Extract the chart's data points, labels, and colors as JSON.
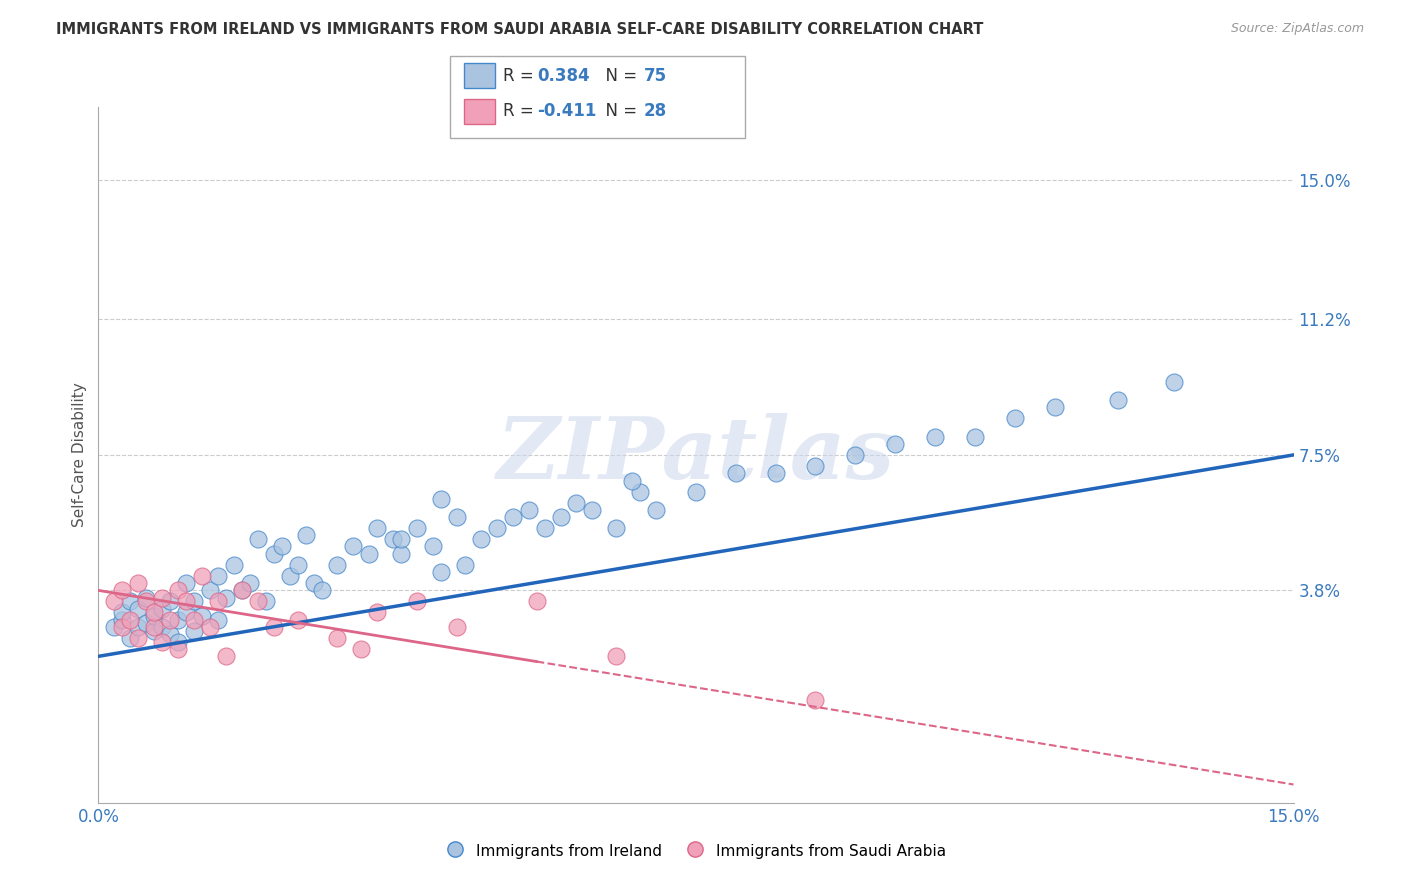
{
  "title": "IMMIGRANTS FROM IRELAND VS IMMIGRANTS FROM SAUDI ARABIA SELF-CARE DISABILITY CORRELATION CHART",
  "source": "Source: ZipAtlas.com",
  "ylabel": "Self-Care Disability",
  "xlim": [
    0.0,
    15.0
  ],
  "ylim": [
    -2.0,
    17.0
  ],
  "y_tick_vals": [
    3.8,
    7.5,
    11.2,
    15.0
  ],
  "y_tick_labels": [
    "3.8%",
    "7.5%",
    "11.2%",
    "15.0%"
  ],
  "x_tick_vals": [
    0.0,
    15.0
  ],
  "x_tick_labels": [
    "0.0%",
    "15.0%"
  ],
  "color_ireland": "#aac4e0",
  "color_saudi": "#f0a0b8",
  "color_ireland_edge": "#4488cc",
  "color_saudi_edge": "#dd6688",
  "color_ireland_line": "#2266bb",
  "color_saudi_line": "#dd6688",
  "background_color": "#ffffff",
  "grid_color": "#cccccc",
  "watermark": "ZIPatlas",
  "ireland_line_x0": 0.0,
  "ireland_line_y0": 2.0,
  "ireland_line_x1": 15.0,
  "ireland_line_y1": 7.5,
  "saudi_line_x0": 0.0,
  "saudi_line_y0": 3.8,
  "saudi_line_x1": 15.0,
  "saudi_line_y1": -1.5,
  "saudi_solid_end": 5.5,
  "ireland_x": [
    0.2,
    0.3,
    0.3,
    0.4,
    0.4,
    0.5,
    0.5,
    0.6,
    0.6,
    0.7,
    0.7,
    0.8,
    0.8,
    0.9,
    0.9,
    1.0,
    1.0,
    1.1,
    1.1,
    1.2,
    1.2,
    1.3,
    1.4,
    1.5,
    1.5,
    1.6,
    1.7,
    1.8,
    1.9,
    2.0,
    2.1,
    2.2,
    2.3,
    2.4,
    2.5,
    2.6,
    2.7,
    2.8,
    3.0,
    3.2,
    3.4,
    3.5,
    3.7,
    3.8,
    4.0,
    4.2,
    4.3,
    4.5,
    4.6,
    4.8,
    5.0,
    5.2,
    5.4,
    5.6,
    5.8,
    6.0,
    6.2,
    6.5,
    6.8,
    7.0,
    7.5,
    8.0,
    8.5,
    9.0,
    9.5,
    10.0,
    10.5,
    11.0,
    11.5,
    12.0,
    12.8,
    13.5,
    4.3,
    6.7,
    3.8
  ],
  "ireland_y": [
    2.8,
    3.0,
    3.2,
    2.5,
    3.5,
    2.8,
    3.3,
    2.9,
    3.6,
    2.7,
    3.1,
    3.3,
    2.8,
    2.6,
    3.5,
    3.0,
    2.4,
    3.2,
    4.0,
    3.5,
    2.7,
    3.1,
    3.8,
    4.2,
    3.0,
    3.6,
    4.5,
    3.8,
    4.0,
    5.2,
    3.5,
    4.8,
    5.0,
    4.2,
    4.5,
    5.3,
    4.0,
    3.8,
    4.5,
    5.0,
    4.8,
    5.5,
    5.2,
    4.8,
    5.5,
    5.0,
    4.3,
    5.8,
    4.5,
    5.2,
    5.5,
    5.8,
    6.0,
    5.5,
    5.8,
    6.2,
    6.0,
    5.5,
    6.5,
    6.0,
    6.5,
    7.0,
    7.0,
    7.2,
    7.5,
    7.8,
    8.0,
    8.0,
    8.5,
    8.8,
    9.0,
    9.5,
    6.3,
    6.8,
    5.2
  ],
  "saudi_x": [
    0.2,
    0.3,
    0.3,
    0.4,
    0.5,
    0.5,
    0.6,
    0.7,
    0.7,
    0.8,
    0.8,
    0.9,
    1.0,
    1.0,
    1.1,
    1.2,
    1.3,
    1.4,
    1.5,
    1.6,
    1.8,
    2.0,
    2.2,
    2.5,
    3.0,
    3.3,
    3.5,
    4.0,
    4.5,
    5.5,
    6.5,
    9.0
  ],
  "saudi_y": [
    3.5,
    2.8,
    3.8,
    3.0,
    2.5,
    4.0,
    3.5,
    2.8,
    3.2,
    3.6,
    2.4,
    3.0,
    3.8,
    2.2,
    3.5,
    3.0,
    4.2,
    2.8,
    3.5,
    2.0,
    3.8,
    3.5,
    2.8,
    3.0,
    2.5,
    2.2,
    3.2,
    3.5,
    2.8,
    3.5,
    2.0,
    0.8
  ]
}
